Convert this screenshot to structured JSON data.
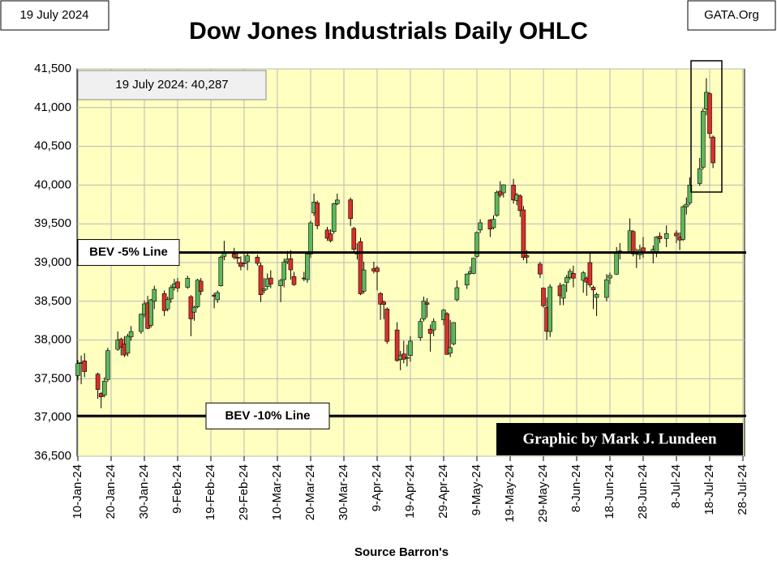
{
  "header": {
    "date": "19 July 2024",
    "site": "GATA.Org"
  },
  "chart_data": {
    "type": "candlestick",
    "title": "Dow Jones Industrials Daily OHLC",
    "annotation": "19 July 2024:  40,287",
    "credit": "Graphic by Mark J. Lundeen",
    "xlabel": "Source Barron's",
    "x": [
      "2024-01-10",
      "2024-01-11",
      "2024-01-12",
      "2024-01-16",
      "2024-01-17",
      "2024-01-18",
      "2024-01-19",
      "2024-01-22",
      "2024-01-23",
      "2024-01-24",
      "2024-01-25",
      "2024-01-26",
      "2024-01-29",
      "2024-01-30",
      "2024-01-31",
      "2024-02-01",
      "2024-02-02",
      "2024-02-05",
      "2024-02-06",
      "2024-02-07",
      "2024-02-08",
      "2024-02-09",
      "2024-02-12",
      "2024-02-13",
      "2024-02-14",
      "2024-02-15",
      "2024-02-16",
      "2024-02-20",
      "2024-02-21",
      "2024-02-22",
      "2024-02-23",
      "2024-02-26",
      "2024-02-27",
      "2024-02-28",
      "2024-02-29",
      "2024-03-01",
      "2024-03-04",
      "2024-03-05",
      "2024-03-06",
      "2024-03-07",
      "2024-03-08",
      "2024-03-11",
      "2024-03-12",
      "2024-03-13",
      "2024-03-14",
      "2024-03-15",
      "2024-03-18",
      "2024-03-19",
      "2024-03-20",
      "2024-03-21",
      "2024-03-22",
      "2024-03-25",
      "2024-03-26",
      "2024-03-27",
      "2024-03-28",
      "2024-04-01",
      "2024-04-02",
      "2024-04-03",
      "2024-04-04",
      "2024-04-05",
      "2024-04-08",
      "2024-04-09",
      "2024-04-10",
      "2024-04-11",
      "2024-04-12",
      "2024-04-15",
      "2024-04-16",
      "2024-04-17",
      "2024-04-18",
      "2024-04-19",
      "2024-04-22",
      "2024-04-23",
      "2024-04-24",
      "2024-04-25",
      "2024-04-26",
      "2024-04-29",
      "2024-04-30",
      "2024-05-01",
      "2024-05-02",
      "2024-05-03",
      "2024-05-06",
      "2024-05-07",
      "2024-05-08",
      "2024-05-09",
      "2024-05-10",
      "2024-05-13",
      "2024-05-14",
      "2024-05-15",
      "2024-05-16",
      "2024-05-17",
      "2024-05-20",
      "2024-05-21",
      "2024-05-22",
      "2024-05-23",
      "2024-05-24",
      "2024-05-28",
      "2024-05-29",
      "2024-05-30",
      "2024-05-31",
      "2024-06-03",
      "2024-06-04",
      "2024-06-05",
      "2024-06-06",
      "2024-06-07",
      "2024-06-10",
      "2024-06-11",
      "2024-06-12",
      "2024-06-13",
      "2024-06-14",
      "2024-06-17",
      "2024-06-18",
      "2024-06-20",
      "2024-06-21",
      "2024-06-24",
      "2024-06-25",
      "2024-06-26",
      "2024-06-27",
      "2024-06-28",
      "2024-07-01",
      "2024-07-02",
      "2024-07-03",
      "2024-07-05",
      "2024-07-08",
      "2024-07-09",
      "2024-07-10",
      "2024-07-11",
      "2024-07-12",
      "2024-07-15",
      "2024-07-16",
      "2024-07-17",
      "2024-07-18",
      "2024-07-19"
    ],
    "open": [
      37540,
      37700,
      37730,
      37560,
      37310,
      37290,
      37490,
      37880,
      38010,
      37950,
      37830,
      38040,
      38110,
      38330,
      38480,
      38190,
      38500,
      38600,
      38400,
      38530,
      38680,
      38750,
      38680,
      38560,
      38360,
      38430,
      38760,
      38580,
      38520,
      38700,
      39080,
      39110,
      39070,
      39000,
      38990,
      39010,
      39070,
      38960,
      38640,
      38690,
      38800,
      38700,
      38780,
      39010,
      39050,
      38820,
      38800,
      38780,
      39110,
      39640,
      39770,
      39420,
      39370,
      39400,
      39760,
      39810,
      39440,
      39110,
      39270,
      38630,
      38920,
      38930,
      38600,
      38490,
      38400,
      38130,
      37750,
      37820,
      37770,
      37800,
      38030,
      38270,
      38480,
      38140,
      38130,
      38260,
      38340,
      37830,
      37950,
      38520,
      38710,
      38860,
      38860,
      39080,
      39420,
      39550,
      39450,
      39610,
      39920,
      39900,
      40000,
      39800,
      39860,
      39680,
      39090,
      38980,
      38670,
      38420,
      38110,
      38700,
      38540,
      38740,
      38810,
      38860,
      38770,
      38800,
      39000,
      38680,
      38550,
      38550,
      38800,
      38850,
      39150,
      39130,
      39400,
      39110,
      39100,
      39190,
      39120,
      39120,
      39340,
      39310,
      39380,
      39330,
      39300,
      39720,
      39770,
      40020,
      40230,
      40980,
      41180,
      40620
    ],
    "high": [
      37740,
      37800,
      37830,
      37580,
      37330,
      37520,
      37900,
      38110,
      38030,
      38050,
      38080,
      38180,
      38340,
      38510,
      38570,
      38530,
      38700,
      38640,
      38560,
      38710,
      38790,
      38800,
      38830,
      38580,
      38440,
      38790,
      38800,
      38610,
      38640,
      39090,
      39280,
      39190,
      39120,
      39080,
      39110,
      39130,
      39100,
      39000,
      38800,
      38860,
      38900,
      38790,
      39050,
      39150,
      39160,
      38880,
      38880,
      39130,
      39540,
      39890,
      39800,
      39460,
      39430,
      39770,
      39890,
      39840,
      39460,
      39250,
      39320,
      39010,
      39010,
      38960,
      38620,
      38510,
      38420,
      38230,
      37860,
      37990,
      37940,
      38050,
      38280,
      38560,
      38540,
      38200,
      38280,
      38400,
      38360,
      38260,
      38230,
      38770,
      38860,
      38950,
      39060,
      39400,
      39560,
      39560,
      39610,
      39930,
      40050,
      40010,
      40080,
      39900,
      39880,
      39730,
      39160,
      39010,
      38680,
      38550,
      38720,
      38740,
      38720,
      38840,
      38920,
      38960,
      38890,
      38820,
      39130,
      38700,
      38610,
      38850,
      38870,
      39200,
      39250,
      39570,
      39420,
      39180,
      39230,
      39330,
      39220,
      39340,
      39390,
      39480,
      39420,
      39390,
      39740,
      39840,
      40100,
      40350,
      40990,
      41380,
      41200,
      40640
    ],
    "low": [
      37480,
      37430,
      37520,
      37240,
      37120,
      37260,
      37460,
      37860,
      37800,
      37780,
      37790,
      37990,
      38080,
      38290,
      38140,
      38160,
      38400,
      38310,
      38370,
      38480,
      38640,
      38620,
      38660,
      38050,
      38250,
      38410,
      38580,
      38410,
      38480,
      38690,
      39030,
      39040,
      38980,
      38900,
      38940,
      38900,
      38960,
      38490,
      38600,
      38650,
      38670,
      38490,
      38680,
      38980,
      38780,
      38700,
      38760,
      38740,
      39060,
      39600,
      39430,
      39280,
      39260,
      39370,
      39740,
      39470,
      39140,
      39040,
      38580,
      38600,
      38860,
      38640,
      38260,
      38270,
      37950,
      37720,
      37610,
      37700,
      37660,
      37720,
      37990,
      38240,
      38290,
      37850,
      38050,
      38190,
      37810,
      37780,
      37930,
      38500,
      38660,
      38840,
      38850,
      39060,
      39380,
      39330,
      39430,
      39590,
      39840,
      39840,
      39760,
      39740,
      39590,
      39030,
      38990,
      38800,
      38420,
      38000,
      38040,
      38450,
      38450,
      38620,
      38780,
      38680,
      38610,
      38570,
      38680,
      38400,
      38310,
      38500,
      38720,
      38840,
      39040,
      39130,
      39080,
      38930,
      39040,
      39060,
      38990,
      39070,
      39250,
      39200,
      39250,
      39160,
      39280,
      39620,
      39740,
      39990,
      40200,
      40900,
      40600,
      40220
    ],
    "close": [
      37695,
      37711,
      37593,
      37361,
      37267,
      37469,
      37863,
      38001,
      37905,
      37806,
      38049,
      38109,
      38333,
      38467,
      38150,
      38519,
      38654,
      38380,
      38521,
      38677,
      38726,
      38671,
      38797,
      38273,
      38424,
      38773,
      38628,
      38564,
      38612,
      39069,
      39131,
      39069,
      39053,
      38949,
      38996,
      39087,
      38990,
      38585,
      38661,
      38791,
      38723,
      38770,
      39005,
      39043,
      38906,
      38715,
      38790,
      39111,
      39512,
      39781,
      39476,
      39314,
      39282,
      39760,
      39807,
      39567,
      39170,
      39127,
      38597,
      38904,
      38892,
      38883,
      38462,
      38459,
      37983,
      37735,
      37799,
      37753,
      37775,
      37986,
      38240,
      38504,
      38461,
      38086,
      38239,
      38386,
      37815,
      37903,
      38226,
      38676,
      38852,
      38884,
      39056,
      39388,
      39513,
      39432,
      39558,
      39908,
      39869,
      40004,
      39807,
      39872,
      39671,
      39065,
      39070,
      38852,
      38441,
      38112,
      38686,
      38571,
      38711,
      38807,
      38886,
      38799,
      38868,
      38747,
      38712,
      38647,
      38589,
      38778,
      38834,
      39135,
      39150,
      39411,
      39112,
      39127,
      39164,
      39119,
      39170,
      39331,
      39308,
      39375,
      39344,
      39291,
      39721,
      39753,
      40001,
      40212,
      40954,
      41198,
      40665,
      40287
    ],
    "up_color": "#5cb85c",
    "down_color": "#d9302a",
    "reference_lines": [
      {
        "label": "BEV -5% Line",
        "value": 39130
      },
      {
        "label": "BEV -10% Line",
        "value": 37020
      }
    ],
    "xlim": [
      "2024-01-10",
      "2024-07-28"
    ],
    "xticks": [
      {
        "value": "2024-01-10",
        "label": "10-Jan-24"
      },
      {
        "value": "2024-01-20",
        "label": "20-Jan-24"
      },
      {
        "value": "2024-01-30",
        "label": "30-Jan-24"
      },
      {
        "value": "2024-02-09",
        "label": "9-Feb-24"
      },
      {
        "value": "2024-02-19",
        "label": "19-Feb-24"
      },
      {
        "value": "2024-02-29",
        "label": "29-Feb-24"
      },
      {
        "value": "2024-03-10",
        "label": "10-Mar-24"
      },
      {
        "value": "2024-03-20",
        "label": "20-Mar-24"
      },
      {
        "value": "2024-03-30",
        "label": "30-Mar-24"
      },
      {
        "value": "2024-04-09",
        "label": "9-Apr-24"
      },
      {
        "value": "2024-04-19",
        "label": "19-Apr-24"
      },
      {
        "value": "2024-04-29",
        "label": "29-Apr-24"
      },
      {
        "value": "2024-05-09",
        "label": "9-May-24"
      },
      {
        "value": "2024-05-19",
        "label": "19-May-24"
      },
      {
        "value": "2024-05-29",
        "label": "29-May-24"
      },
      {
        "value": "2024-06-08",
        "label": "8-Jun-24"
      },
      {
        "value": "2024-06-18",
        "label": "18-Jun-24"
      },
      {
        "value": "2024-06-28",
        "label": "28-Jun-24"
      },
      {
        "value": "2024-07-08",
        "label": "8-Jul-24"
      },
      {
        "value": "2024-07-18",
        "label": "18-Jul-24"
      },
      {
        "value": "2024-07-28",
        "label": "28-Jul-24"
      }
    ],
    "ylim": [
      36500,
      41500
    ],
    "yticks": [
      {
        "value": 36500,
        "label": "36,500"
      },
      {
        "value": 37000,
        "label": "37,000"
      },
      {
        "value": 37500,
        "label": "37,500"
      },
      {
        "value": 38000,
        "label": "38,000"
      },
      {
        "value": 38500,
        "label": "38,500"
      },
      {
        "value": 39000,
        "label": "39,000"
      },
      {
        "value": 39500,
        "label": "39,500"
      },
      {
        "value": 40000,
        "label": "40,000"
      },
      {
        "value": 40500,
        "label": "40,500"
      },
      {
        "value": 41000,
        "label": "41,000"
      },
      {
        "value": 41500,
        "label": "41,500"
      }
    ],
    "grid": true
  }
}
